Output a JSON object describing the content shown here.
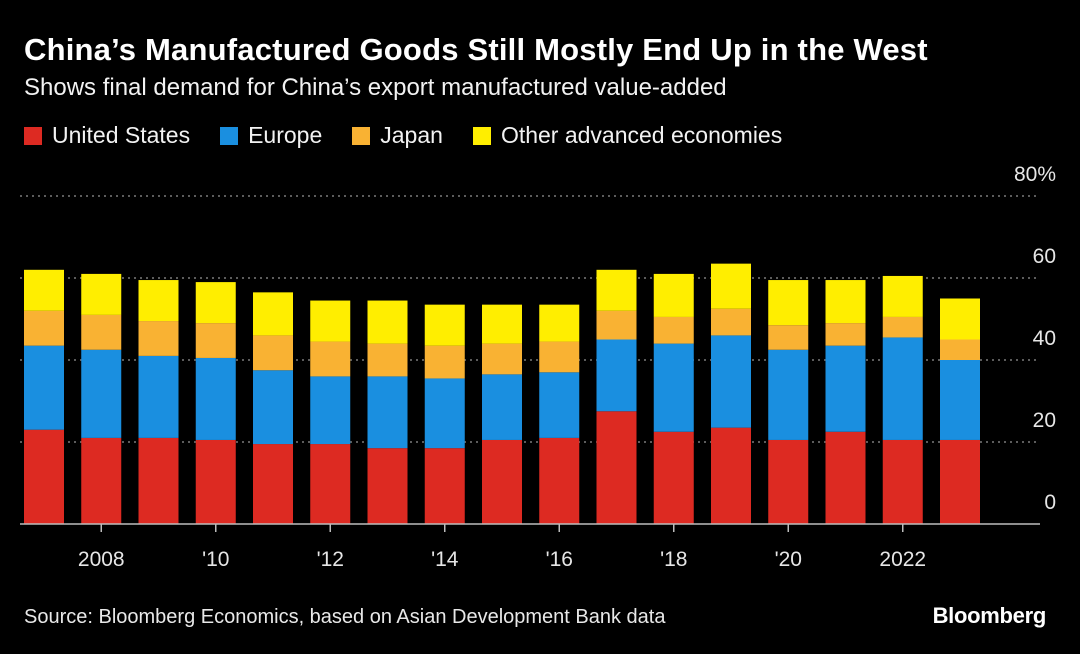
{
  "title": "China’s Manufactured Goods Still Mostly End Up in the West",
  "subtitle": "Shows final demand for China’s export manufactured value-added",
  "source": "Source: Bloomberg Economics, based on Asian Development Bank data",
  "brand": "Bloomberg",
  "chart_data": {
    "type": "bar",
    "stacked": true,
    "x": [
      2007,
      2008,
      2009,
      2010,
      2011,
      2012,
      2013,
      2014,
      2015,
      2016,
      2017,
      2018,
      2019,
      2020,
      2021,
      2022,
      2023
    ],
    "x_tick_labels": [
      {
        "x": 2008,
        "label": "2008"
      },
      {
        "x": 2010,
        "label": "'10"
      },
      {
        "x": 2012,
        "label": "'12"
      },
      {
        "x": 2014,
        "label": "'14"
      },
      {
        "x": 2016,
        "label": "'16"
      },
      {
        "x": 2018,
        "label": "'18"
      },
      {
        "x": 2020,
        "label": "'20"
      },
      {
        "x": 2022,
        "label": "2022"
      }
    ],
    "y_ticks": [
      {
        "value": 0,
        "label": "0"
      },
      {
        "value": 20,
        "label": "20"
      },
      {
        "value": 40,
        "label": "40"
      },
      {
        "value": 60,
        "label": "60"
      },
      {
        "value": 80,
        "label": "80%"
      }
    ],
    "ylim": [
      0,
      80
    ],
    "grid": true,
    "legend_position": "top-left",
    "series": [
      {
        "name": "United States",
        "color": "#dd2a22",
        "values": [
          23,
          21,
          21,
          20.5,
          19.5,
          19.5,
          18.5,
          18.5,
          20.5,
          21,
          27.5,
          22.5,
          23.5,
          20.5,
          22.5,
          20.5,
          20.5
        ]
      },
      {
        "name": "Europe",
        "color": "#1a8fe0",
        "values": [
          20.5,
          21.5,
          20,
          20,
          18,
          16.5,
          17.5,
          17,
          16,
          16,
          17.5,
          21.5,
          22.5,
          22,
          21,
          25,
          19.5
        ]
      },
      {
        "name": "Japan",
        "color": "#f9b233",
        "values": [
          8.5,
          8.5,
          8.5,
          8.5,
          8.5,
          8.5,
          8,
          8,
          7.5,
          7.5,
          7,
          6.5,
          6.5,
          6,
          5.5,
          5,
          5
        ]
      },
      {
        "name": "Other advanced economies",
        "color": "#ffee00",
        "values": [
          10,
          10,
          10,
          10,
          10.5,
          10,
          10.5,
          10,
          9.5,
          9,
          10,
          10.5,
          11,
          11,
          10.5,
          10,
          10
        ]
      }
    ]
  }
}
